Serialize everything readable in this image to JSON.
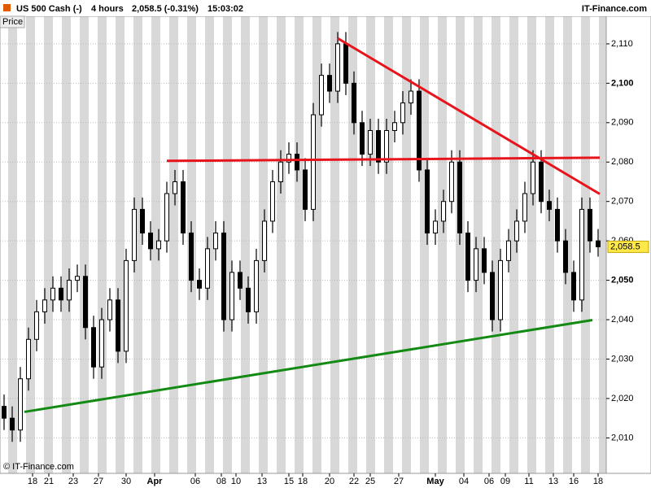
{
  "chart_data": {
    "type": "candlestick",
    "header": {
      "instrument": "US 500 Cash (-)",
      "interval": "4 hours",
      "quote": "2,058.5 (-0.31%)",
      "time": "15:03:02",
      "brand": "IT-Finance.com"
    },
    "panel_label": "Price",
    "copyright": "© IT-Finance.com",
    "xlim": [
      -0.5,
      74
    ],
    "ylim": [
      2001,
      2117
    ],
    "yticks": [
      {
        "value": 2010,
        "label": "2,010"
      },
      {
        "value": 2020,
        "label": "2,020"
      },
      {
        "value": 2030,
        "label": "2,030"
      },
      {
        "value": 2040,
        "label": "2,040"
      },
      {
        "value": 2050,
        "label": "2,050"
      },
      {
        "value": 2060,
        "label": "2,060"
      },
      {
        "value": 2070,
        "label": "2,070"
      },
      {
        "value": 2080,
        "label": "2,080"
      },
      {
        "value": 2090,
        "label": "2,090"
      },
      {
        "value": 2100,
        "label": "2,100"
      },
      {
        "value": 2110,
        "label": "2,110"
      }
    ],
    "xticks": [
      {
        "value": 3.5,
        "label": "18"
      },
      {
        "value": 5.5,
        "label": "21"
      },
      {
        "value": 8.5,
        "label": "23"
      },
      {
        "value": 11.6,
        "label": "27"
      },
      {
        "value": 15,
        "label": "30"
      },
      {
        "value": 18.5,
        "label": "Apr"
      },
      {
        "value": 23.5,
        "label": "06"
      },
      {
        "value": 26.7,
        "label": "08"
      },
      {
        "value": 28.5,
        "label": "10"
      },
      {
        "value": 31.7,
        "label": "13"
      },
      {
        "value": 35,
        "label": "15"
      },
      {
        "value": 36.7,
        "label": "18"
      },
      {
        "value": 40,
        "label": "20"
      },
      {
        "value": 43,
        "label": "22"
      },
      {
        "value": 45,
        "label": "25"
      },
      {
        "value": 48.5,
        "label": "27"
      },
      {
        "value": 53,
        "label": "May"
      },
      {
        "value": 56.5,
        "label": "04"
      },
      {
        "value": 59.6,
        "label": "06"
      },
      {
        "value": 61.6,
        "label": "09"
      },
      {
        "value": 64.5,
        "label": "11"
      },
      {
        "value": 67.5,
        "label": "13"
      },
      {
        "value": 70,
        "label": "16"
      },
      {
        "value": 73,
        "label": "18"
      }
    ],
    "color": "#000000",
    "candles": [
      [
        2018,
        2021,
        2012,
        2015
      ],
      [
        2015,
        2018,
        2009,
        2012
      ],
      [
        2012,
        2028,
        2009,
        2025
      ],
      [
        2025,
        2038,
        2022,
        2035
      ],
      [
        2035,
        2045,
        2032,
        2042
      ],
      [
        2042,
        2048,
        2039,
        2045
      ],
      [
        2045,
        2051,
        2042,
        2048
      ],
      [
        2048,
        2051,
        2042,
        2045
      ],
      [
        2045,
        2053,
        2042,
        2050
      ],
      [
        2050,
        2054,
        2047,
        2051
      ],
      [
        2051,
        2054,
        2035,
        2038
      ],
      [
        2038,
        2041,
        2025,
        2028
      ],
      [
        2028,
        2043,
        2025,
        2040
      ],
      [
        2040,
        2048,
        2037,
        2045
      ],
      [
        2045,
        2048,
        2029,
        2032
      ],
      [
        2032,
        2058,
        2029,
        2055
      ],
      [
        2055,
        2071,
        2052,
        2068
      ],
      [
        2068,
        2071,
        2059,
        2062
      ],
      [
        2062,
        2065,
        2055,
        2058
      ],
      [
        2058,
        2063,
        2055,
        2060
      ],
      [
        2060,
        2075,
        2057,
        2072
      ],
      [
        2072,
        2078,
        2069,
        2075
      ],
      [
        2075,
        2078,
        2059,
        2062
      ],
      [
        2062,
        2065,
        2047,
        2050
      ],
      [
        2050,
        2053,
        2045,
        2048
      ],
      [
        2048,
        2061,
        2045,
        2058
      ],
      [
        2058,
        2065,
        2055,
        2062
      ],
      [
        2062,
        2065,
        2037,
        2040
      ],
      [
        2040,
        2055,
        2037,
        2052
      ],
      [
        2052,
        2055,
        2045,
        2048
      ],
      [
        2048,
        2051,
        2039,
        2042
      ],
      [
        2042,
        2058,
        2039,
        2055
      ],
      [
        2055,
        2068,
        2052,
        2065
      ],
      [
        2065,
        2078,
        2062,
        2075
      ],
      [
        2075,
        2083,
        2072,
        2080
      ],
      [
        2080,
        2085,
        2077,
        2082
      ],
      [
        2082,
        2085,
        2075,
        2078
      ],
      [
        2078,
        2081,
        2065,
        2068
      ],
      [
        2068,
        2095,
        2065,
        2092
      ],
      [
        2092,
        2105,
        2089,
        2102
      ],
      [
        2102,
        2105,
        2095,
        2098
      ],
      [
        2098,
        2113,
        2095,
        2110
      ],
      [
        2110,
        2113,
        2097,
        2100
      ],
      [
        2100,
        2103,
        2087,
        2090
      ],
      [
        2090,
        2093,
        2079,
        2082
      ],
      [
        2082,
        2091,
        2079,
        2088
      ],
      [
        2088,
        2091,
        2077,
        2080
      ],
      [
        2080,
        2091,
        2077,
        2088
      ],
      [
        2088,
        2093,
        2085,
        2090
      ],
      [
        2090,
        2098,
        2087,
        2095
      ],
      [
        2095,
        2101,
        2092,
        2098
      ],
      [
        2098,
        2101,
        2075,
        2078
      ],
      [
        2078,
        2081,
        2059,
        2062
      ],
      [
        2062,
        2068,
        2059,
        2065
      ],
      [
        2065,
        2073,
        2062,
        2070
      ],
      [
        2070,
        2083,
        2067,
        2080
      ],
      [
        2080,
        2083,
        2059,
        2062
      ],
      [
        2062,
        2065,
        2047,
        2050
      ],
      [
        2050,
        2061,
        2047,
        2058
      ],
      [
        2058,
        2061,
        2049,
        2052
      ],
      [
        2052,
        2055,
        2037,
        2040
      ],
      [
        2040,
        2058,
        2037,
        2055
      ],
      [
        2055,
        2063,
        2052,
        2060
      ],
      [
        2060,
        2068,
        2057,
        2065
      ],
      [
        2065,
        2075,
        2062,
        2072
      ],
      [
        2072,
        2083,
        2069,
        2080
      ],
      [
        2080,
        2083,
        2067,
        2070
      ],
      [
        2070,
        2073,
        2065,
        2068
      ],
      [
        2068,
        2071,
        2057,
        2060
      ],
      [
        2060,
        2063,
        2049,
        2052
      ],
      [
        2052,
        2055,
        2042,
        2045
      ],
      [
        2045,
        2071,
        2042,
        2068
      ],
      [
        2068,
        2071,
        2057,
        2060
      ],
      [
        2060,
        2063,
        2056,
        2058.5
      ]
    ],
    "last_price": {
      "value": 2058.5,
      "label": "2,058.5"
    },
    "trendlines": [
      {
        "color": "#e8141c",
        "x": [
          41,
          73.2
        ],
        "y": [
          2111.4,
          2071.9
        ]
      },
      {
        "color": "#e8141c",
        "x": [
          20,
          73.2
        ],
        "y": [
          2080.3,
          2081.1
        ]
      },
      {
        "color": "#138a13",
        "x": [
          2.5,
          72.3
        ],
        "y": [
          2016.6,
          2039.9
        ]
      }
    ]
  }
}
